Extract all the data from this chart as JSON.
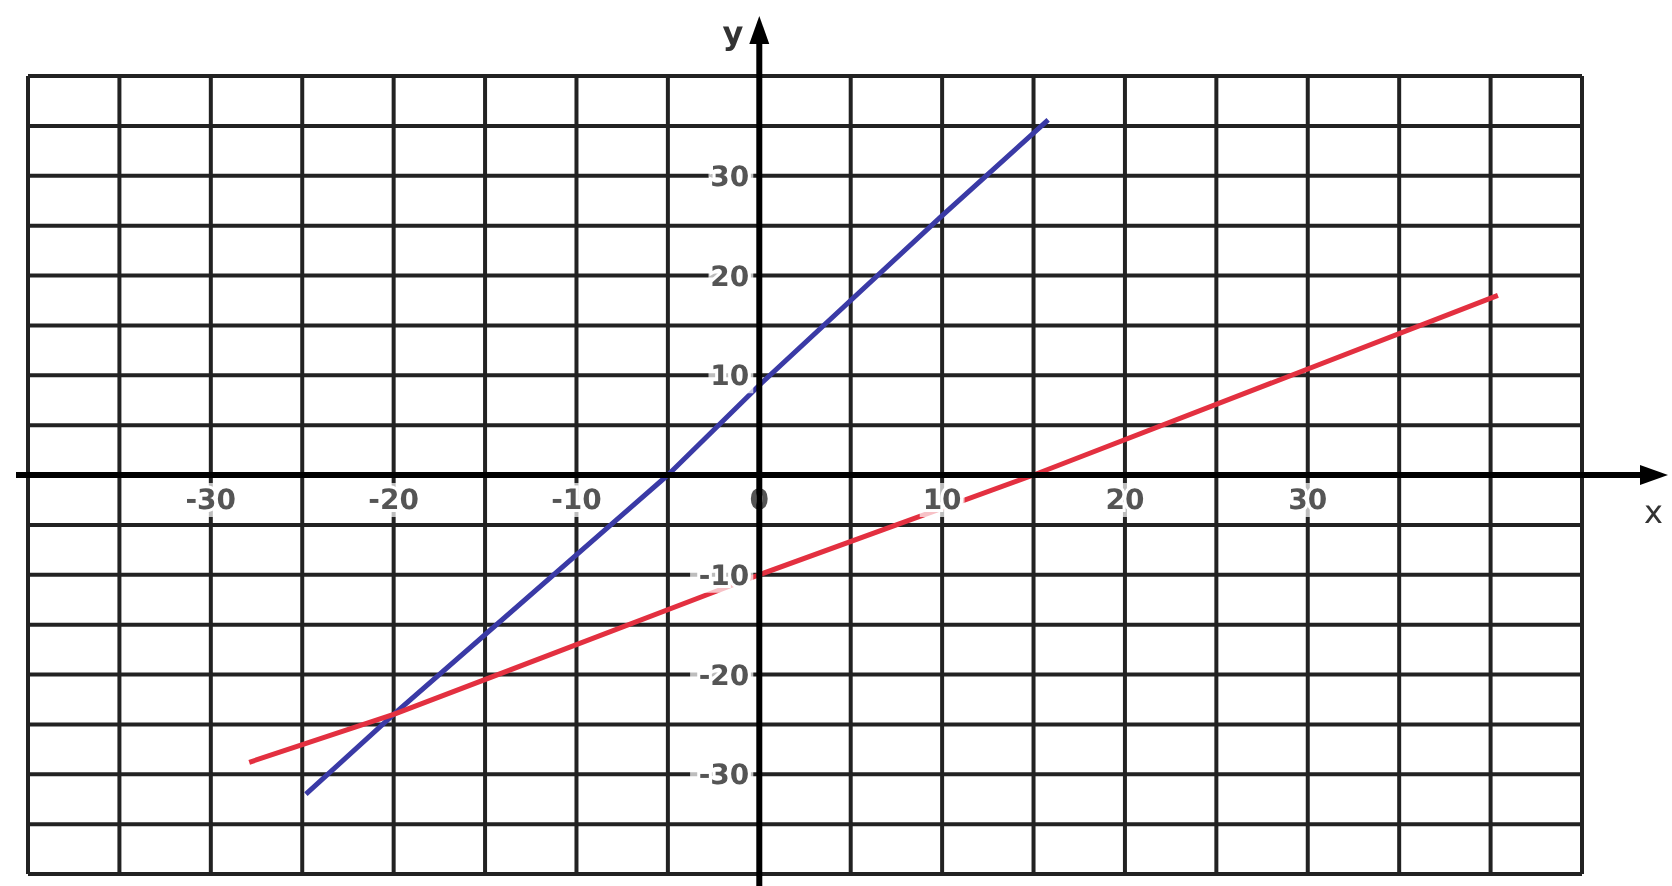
{
  "chart_data": {
    "type": "line",
    "xlabel": "x",
    "ylabel": "y",
    "series": [
      {
        "color": "#3a3aa6",
        "x": [
          -24.8,
          -20,
          -5,
          0,
          10,
          15.8
        ],
        "values": [
          -32,
          -24,
          0,
          9,
          26,
          35.6
        ]
      },
      {
        "color": "#e33040",
        "x": [
          -27.9,
          -20,
          0,
          15,
          40.4
        ],
        "values": [
          -28.8,
          -24,
          -10,
          0,
          18
        ]
      }
    ],
    "xlim": [
      -40,
      45
    ],
    "ylim": [
      -40,
      40
    ],
    "xticks": [
      {
        "value": -40,
        "label": null
      },
      {
        "value": -35,
        "label": null
      },
      -30,
      {
        "value": -25,
        "label": null
      },
      -20,
      {
        "value": -15,
        "label": null
      },
      -10,
      {
        "value": -5,
        "label": null
      },
      0,
      {
        "value": 5,
        "label": null
      },
      10,
      {
        "value": 15,
        "label": null
      },
      20,
      {
        "value": 25,
        "label": null
      },
      30,
      {
        "value": 35,
        "label": null
      },
      {
        "value": 40,
        "label": null
      },
      {
        "value": 45,
        "label": null
      }
    ],
    "yticks": [
      {
        "value": -40,
        "label": null
      },
      {
        "value": -35,
        "label": null
      },
      -30,
      {
        "value": -25,
        "label": null
      },
      -20,
      {
        "value": -15,
        "label": null
      },
      -10,
      {
        "value": -5,
        "label": null
      },
      {
        "value": 0,
        "label": null
      },
      {
        "value": 5,
        "label": null
      },
      10,
      {
        "value": 15,
        "label": null
      },
      20,
      {
        "value": 25,
        "label": null
      },
      30,
      {
        "value": 35,
        "label": null
      },
      {
        "value": 40,
        "label": null
      }
    ],
    "grid": true
  }
}
